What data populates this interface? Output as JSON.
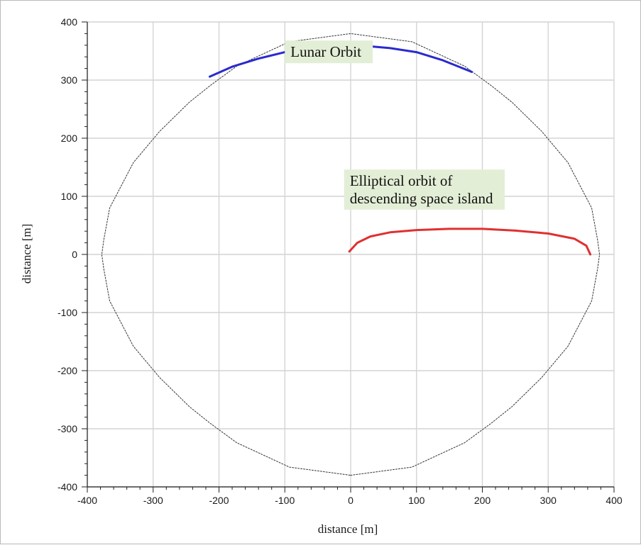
{
  "chart_data": {
    "type": "line",
    "title": "",
    "xlabel": "distance [m]",
    "ylabel": "distance [m]",
    "xlim": [
      -400,
      400
    ],
    "ylim": [
      -400,
      400
    ],
    "xticks": [
      -400,
      -300,
      -200,
      -100,
      0,
      100,
      200,
      300,
      400
    ],
    "yticks": [
      -400,
      -300,
      -200,
      -100,
      0,
      100,
      200,
      300,
      400
    ],
    "grid": true,
    "legend": "none",
    "series": [
      {
        "style": "dotted",
        "color": "#333333",
        "x": [
          0,
          93,
          173,
          214,
          245,
          290,
          330,
          366,
          375,
          378,
          375,
          366,
          330,
          290,
          245,
          214,
          173,
          93,
          0,
          -93,
          -173,
          -214,
          -245,
          -290,
          -330,
          -366,
          -375,
          -378,
          -375,
          -366,
          -330,
          -290,
          -245,
          -214,
          -173,
          -93,
          0
        ],
        "y": [
          -380,
          -366,
          -324,
          -290,
          -262,
          -212,
          -158,
          -80,
          -25,
          0,
          25,
          80,
          158,
          212,
          262,
          290,
          324,
          366,
          380,
          366,
          324,
          290,
          262,
          212,
          158,
          80,
          25,
          0,
          -25,
          -80,
          -158,
          -212,
          -262,
          -290,
          -324,
          -366,
          -380
        ]
      },
      {
        "color": "#2a2ad0",
        "x": [
          -214,
          -180,
          -140,
          -100,
          -60,
          -20,
          0,
          20,
          60,
          100,
          140,
          184
        ],
        "y": [
          306,
          323,
          337,
          348,
          355,
          359,
          360,
          359,
          355,
          348,
          334,
          314
        ]
      },
      {
        "color": "#e03030",
        "x": [
          -2,
          10,
          30,
          60,
          100,
          150,
          200,
          250,
          300,
          340,
          358,
          364
        ],
        "y": [
          5,
          20,
          31,
          38,
          42,
          44,
          44,
          41,
          36,
          27,
          15,
          0
        ]
      }
    ],
    "annotations": [
      {
        "text": "Lunar Orbit",
        "x": -100,
        "y": 340
      },
      {
        "text": "Elliptical orbit of",
        "x": -10,
        "y": 118
      },
      {
        "text": "descending space island",
        "x": -10,
        "y": 88
      }
    ],
    "annotation_bg": "#e3eed6"
  }
}
